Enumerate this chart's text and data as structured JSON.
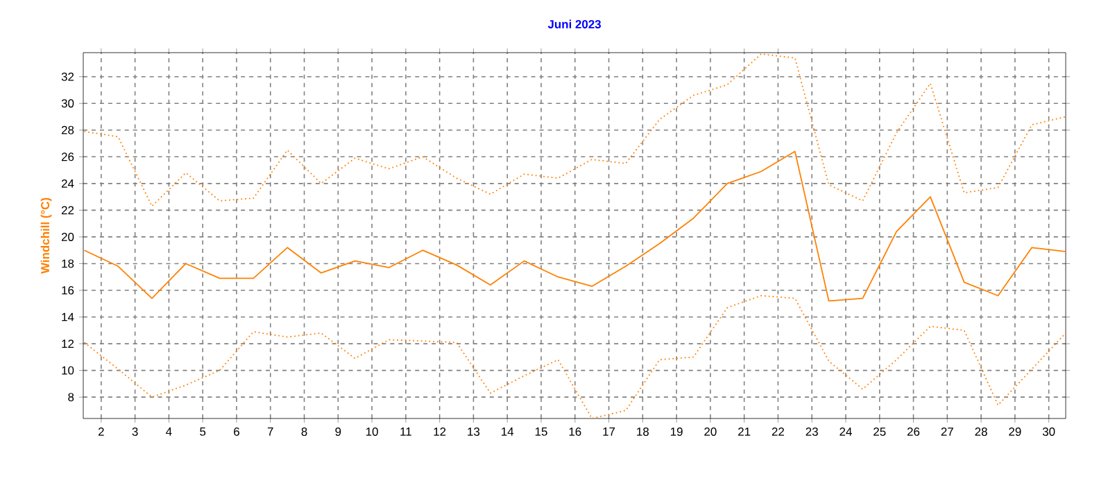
{
  "chart_data": {
    "type": "line",
    "title": "Juni 2023",
    "ylabel": "Windchill (°C)",
    "x": [
      1.5,
      2.5,
      3.5,
      4.5,
      5.5,
      6.5,
      7.5,
      8.5,
      9.5,
      10.5,
      11.5,
      12.5,
      13.5,
      14.5,
      15.5,
      16.5,
      17.5,
      18.5,
      19.5,
      20.5,
      21.5,
      22.5,
      23.5,
      24.5,
      25.5,
      26.5,
      27.5,
      28.5,
      29.5,
      30.5
    ],
    "series": [
      {
        "color": "#ff8000",
        "line_style": "dotted",
        "values": [
          27.9,
          27.5,
          22.3,
          24.8,
          22.7,
          22.9,
          26.5,
          24.0,
          25.9,
          25.1,
          26.0,
          24.4,
          23.2,
          24.7,
          24.4,
          25.8,
          25.5,
          28.8,
          30.6,
          31.4,
          33.7,
          33.4,
          23.9,
          22.7,
          27.8,
          31.5,
          23.3,
          23.7,
          28.4,
          29.0
        ]
      },
      {
        "color": "#ff8000",
        "line_style": "solid",
        "values": [
          19.0,
          17.8,
          15.4,
          18.0,
          16.9,
          16.9,
          19.2,
          17.3,
          18.2,
          17.7,
          19.0,
          17.9,
          16.4,
          18.2,
          17.0,
          16.3,
          17.8,
          19.5,
          21.4,
          24.0,
          24.9,
          26.4,
          15.2,
          15.4,
          20.4,
          23.0,
          16.6,
          15.6,
          19.2,
          18.9
        ]
      },
      {
        "color": "#ff8000",
        "line_style": "dotted",
        "values": [
          12.1,
          10.1,
          8.0,
          8.9,
          10.0,
          12.9,
          12.5,
          12.8,
          10.9,
          12.3,
          12.2,
          12.1,
          8.3,
          9.6,
          10.8,
          6.4,
          7.0,
          10.8,
          11.0,
          14.7,
          15.6,
          15.4,
          10.7,
          8.6,
          10.8,
          13.3,
          13.0,
          7.4,
          10.1,
          12.8
        ]
      }
    ],
    "xlim": [
      1.47,
      30.5
    ],
    "ylim": [
      6.4,
      33.8
    ],
    "xticks": [
      2,
      3,
      4,
      5,
      6,
      7,
      8,
      9,
      10,
      11,
      12,
      13,
      14,
      15,
      16,
      17,
      18,
      19,
      20,
      21,
      22,
      23,
      24,
      25,
      26,
      27,
      28,
      29,
      30
    ],
    "yticks": [
      8,
      10,
      12,
      14,
      16,
      18,
      20,
      22,
      24,
      26,
      28,
      30,
      32
    ],
    "grid": true
  }
}
